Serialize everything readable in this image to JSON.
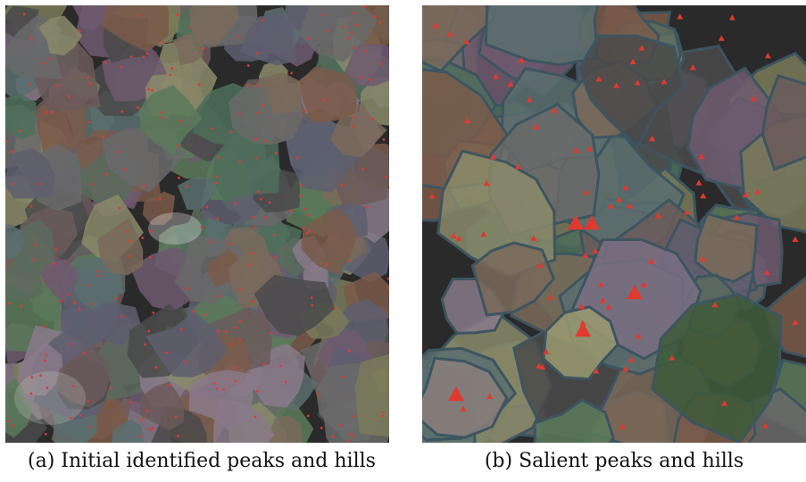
{
  "figure": {
    "subfigures": [
      {
        "caption": "(a) Initial identified peaks and hills"
      },
      {
        "caption": "(b) Salient peaks and hills"
      }
    ]
  }
}
